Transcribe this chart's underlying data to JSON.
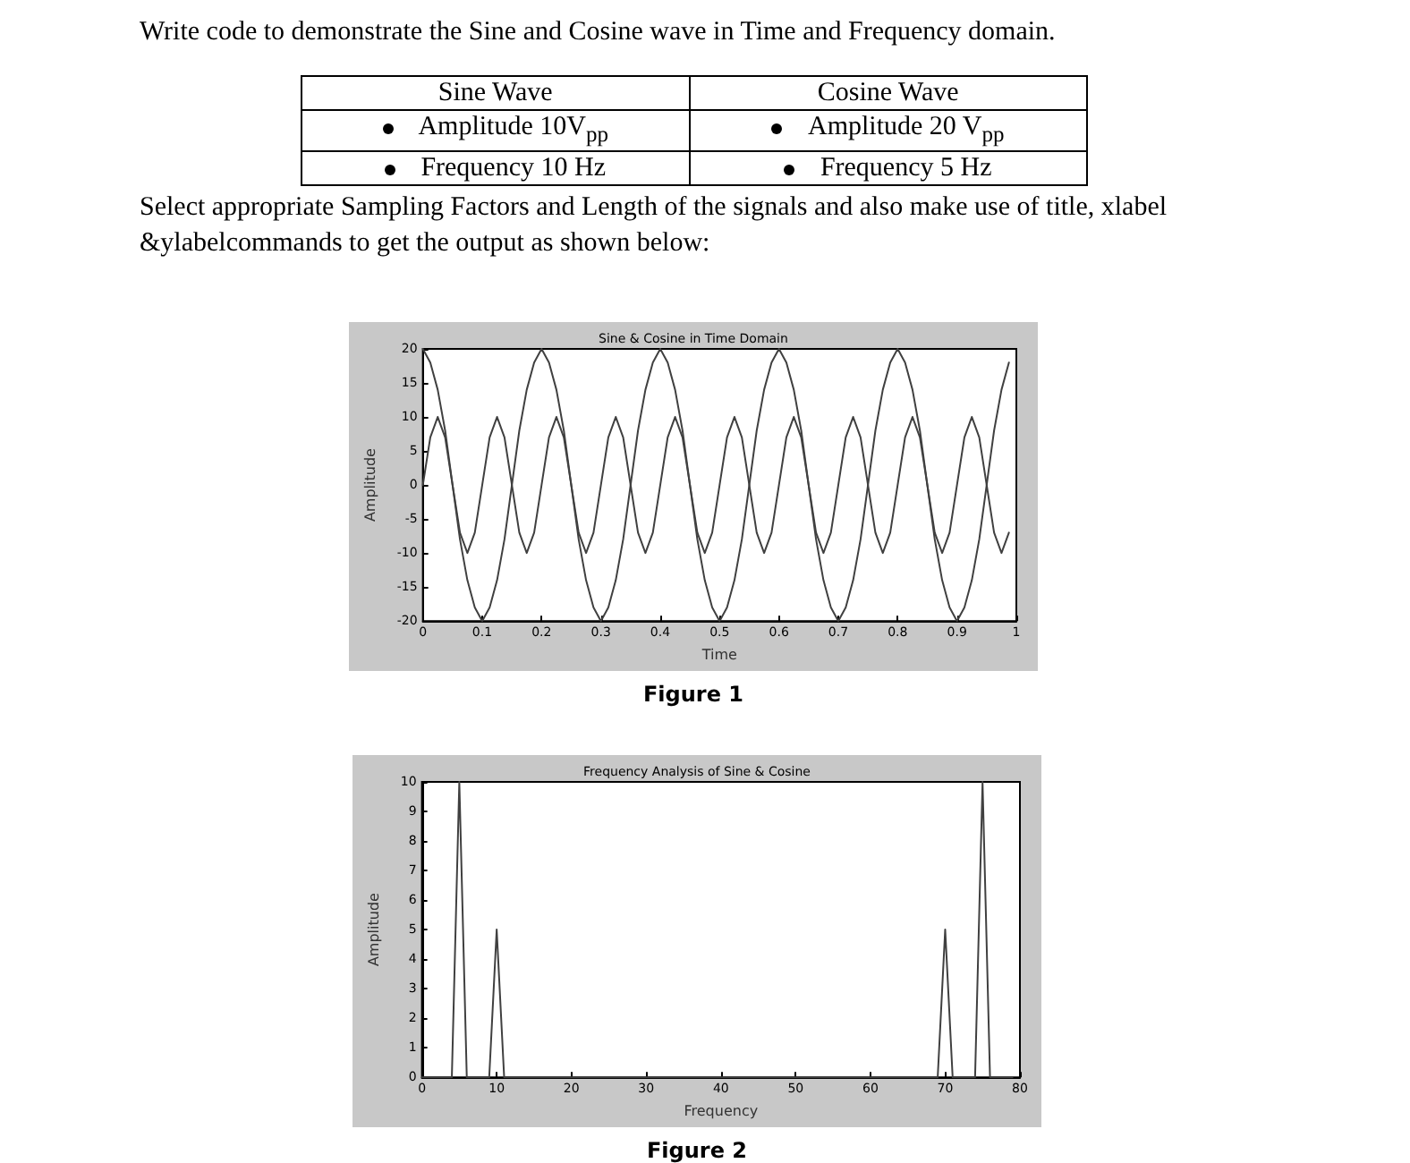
{
  "chart_data": [
    {
      "type": "other",
      "annotations": [
        "Write code to demonstrate the Sine and Cosine wave in Time and Frequency domain.",
        "Sine Wave",
        "Cosine Wave",
        "Amplitude 10V$_{pp}$",
        "Amplitude 20 V$_{pp}$",
        "Frequency 10 Hz",
        "Frequency 5 Hz",
        "Select appropriate Sampling Factors and Length of the signals and also make use of title, xlabel &ylabelcommands to get the output as shown below:"
      ]
    },
    {
      "type": "line",
      "title": "Sine & Cosine in Time Domain",
      "xlabel": "Time",
      "ylabel": "Amplitude",
      "annotations": [
        "Figure 1"
      ],
      "x": [
        0,
        0.0125,
        0.025,
        0.0375,
        0.05,
        0.0625,
        0.075,
        0.0875,
        0.1,
        0.1125,
        0.125,
        0.1375,
        0.15,
        0.1625,
        0.175,
        0.1875,
        0.2,
        0.2125,
        0.225,
        0.2375,
        0.25,
        0.2625,
        0.275,
        0.2875,
        0.3,
        0.3125,
        0.325,
        0.3375,
        0.35,
        0.3625,
        0.375,
        0.3875,
        0.4,
        0.4125,
        0.425,
        0.4375,
        0.45,
        0.4625,
        0.475,
        0.4875,
        0.5,
        0.5125,
        0.525,
        0.5375,
        0.55,
        0.5625,
        0.575,
        0.5875,
        0.6,
        0.6125,
        0.625,
        0.6375,
        0.65,
        0.6625,
        0.675,
        0.6875,
        0.7,
        0.7125,
        0.725,
        0.7375,
        0.75,
        0.7625,
        0.775,
        0.7875,
        0.8,
        0.8125,
        0.825,
        0.8375,
        0.85,
        0.8625,
        0.875,
        0.8875,
        0.9,
        0.9125,
        0.925,
        0.9375,
        0.95,
        0.9625,
        0.975,
        0.9875
      ],
      "series": [
        {
          "color": "#404040",
          "values": [
            0,
            7,
            10,
            7,
            0,
            -7,
            -10,
            -7,
            0,
            7,
            10,
            7,
            0,
            -7,
            -10,
            -7,
            0,
            7,
            10,
            7,
            0,
            -7,
            -10,
            -7,
            0,
            7,
            10,
            7,
            0,
            -7,
            -10,
            -7,
            0,
            7,
            10,
            7,
            0,
            -7,
            -10,
            -7,
            0,
            7,
            10,
            7,
            0,
            -7,
            -10,
            -7,
            0,
            7,
            10,
            7,
            0,
            -7,
            -10,
            -7,
            0,
            7,
            10,
            7,
            0,
            -7,
            -10,
            -7,
            0,
            7,
            10,
            7,
            0,
            -7,
            -10,
            -7,
            0,
            7,
            10,
            7,
            0,
            -7,
            -10,
            -7
          ]
        },
        {
          "color": "#404040",
          "values": [
            20,
            18,
            14,
            8,
            0,
            -8,
            -14,
            -18,
            -20,
            -18,
            -14,
            -8,
            0,
            8,
            14,
            18,
            20,
            18,
            14,
            8,
            0,
            -8,
            -14,
            -18,
            -20,
            -18,
            -14,
            -8,
            0,
            8,
            14,
            18,
            20,
            18,
            14,
            8,
            0,
            -8,
            -14,
            -18,
            -20,
            -18,
            -14,
            -8,
            0,
            8,
            14,
            18,
            20,
            18,
            14,
            8,
            0,
            -8,
            -14,
            -18,
            -20,
            -18,
            -14,
            -8,
            0,
            8,
            14,
            18,
            20,
            18,
            14,
            8,
            0,
            -8,
            -14,
            -18,
            -20,
            -18,
            -14,
            -8,
            0,
            8,
            14,
            18
          ]
        }
      ],
      "xlim": [
        0,
        1
      ],
      "xticks": [
        0,
        0.1,
        0.2,
        0.3,
        0.4,
        0.5,
        0.6,
        0.7,
        0.8,
        0.9,
        1
      ],
      "ylim": [
        -20,
        20
      ],
      "yticks": [
        -20,
        -15,
        -10,
        -5,
        0,
        5,
        10,
        15,
        20
      ]
    },
    {
      "type": "line",
      "title": "Frequency Analysis of Sine & Cosine",
      "xlabel": "Frequency",
      "ylabel": "Amplitude",
      "annotations": [
        "Figure 2"
      ],
      "x": [
        0,
        1,
        2,
        3,
        4,
        5,
        6,
        7,
        8,
        9,
        10,
        11,
        12,
        13,
        14,
        15,
        16,
        17,
        18,
        19,
        20,
        21,
        22,
        23,
        24,
        25,
        26,
        27,
        28,
        29,
        30,
        31,
        32,
        33,
        34,
        35,
        36,
        37,
        38,
        39,
        40,
        41,
        42,
        43,
        44,
        45,
        46,
        47,
        48,
        49,
        50,
        51,
        52,
        53,
        54,
        55,
        56,
        57,
        58,
        59,
        60,
        61,
        62,
        63,
        64,
        65,
        66,
        67,
        68,
        69,
        70,
        71,
        72,
        73,
        74,
        75,
        76,
        77,
        78,
        79
      ],
      "series": [
        {
          "color": "#404040",
          "values": [
            0,
            0,
            0,
            0,
            0,
            10,
            0,
            0,
            0,
            0,
            5,
            0,
            0,
            0,
            0,
            0,
            0,
            0,
            0,
            0,
            0,
            0,
            0,
            0,
            0,
            0,
            0,
            0,
            0,
            0,
            0,
            0,
            0,
            0,
            0,
            0,
            0,
            0,
            0,
            0,
            0,
            0,
            0,
            0,
            0,
            0,
            0,
            0,
            0,
            0,
            0,
            0,
            0,
            0,
            0,
            0,
            0,
            0,
            0,
            0,
            0,
            0,
            0,
            0,
            0,
            0,
            0,
            0,
            0,
            0,
            5,
            0,
            0,
            0,
            0,
            10,
            0,
            0,
            0,
            0
          ]
        }
      ],
      "xlim": [
        0,
        80
      ],
      "xticks": [
        0,
        10,
        20,
        30,
        40,
        50,
        60,
        70,
        80
      ],
      "ylim": [
        0,
        10
      ],
      "yticks": [
        0,
        1,
        2,
        3,
        4,
        5,
        6,
        7,
        8,
        9,
        10
      ]
    }
  ]
}
